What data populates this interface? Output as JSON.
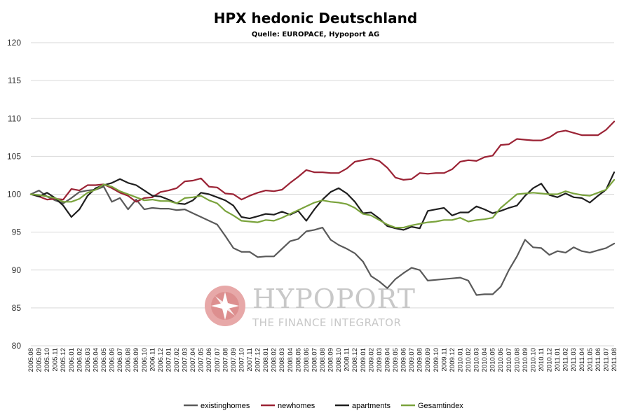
{
  "chart_data": {
    "type": "line",
    "title": "HPX hedonic Deutschland",
    "subtitle": "Quelle: EUROPACE,  Hypoport AG",
    "ylim": [
      80,
      120
    ],
    "yticks": [
      80,
      85,
      90,
      95,
      100,
      105,
      110,
      115,
      120
    ],
    "grid": true,
    "legend_position": "bottom",
    "x": [
      "2005.08",
      "2005.09",
      "2005.10",
      "2005.11",
      "2005.12",
      "2006.01",
      "2006.02",
      "2006.03",
      "2006.04",
      "2006.05",
      "2006.06",
      "2006.07",
      "2006.08",
      "2006.09",
      "2006.10",
      "2006.11",
      "2006.12",
      "2007.01",
      "2007.02",
      "2007.03",
      "2007.04",
      "2007.05",
      "2007.06",
      "2007.07",
      "2007.08",
      "2007.09",
      "2007.10",
      "2007.11",
      "2007.12",
      "2008.01",
      "2008.02",
      "2008.03",
      "2008.04",
      "2008.05",
      "2008.06",
      "2008.07",
      "2008.08",
      "2008.09",
      "2008.10",
      "2008.11",
      "2008.12",
      "2009.01",
      "2009.02",
      "2009.03",
      "2009.04",
      "2009.05",
      "2009.06",
      "2009.07",
      "2009.08",
      "2009.09",
      "2009.10",
      "2009.11",
      "2009.12",
      "2010.01",
      "2010.02",
      "2010.03",
      "2010.04",
      "2010.05",
      "2010.06",
      "2010.07",
      "2010.08",
      "2010.09",
      "2010.10",
      "2010.11",
      "2010.12",
      "2011.01",
      "2011.02",
      "2011.03",
      "2011.04",
      "2011.05",
      "2011.06",
      "2011.07",
      "2011.08"
    ],
    "series": [
      {
        "name": "existinghomes",
        "color": "#5a5a5a",
        "values": [
          100,
          100.5,
          99.7,
          99.2,
          98.8,
          99.5,
          100.3,
          100.5,
          100.6,
          101.0,
          99.0,
          99.5,
          98.0,
          99.3,
          98.0,
          98.2,
          98.1,
          98.1,
          97.9,
          98.0,
          97.5,
          97.0,
          96.5,
          96.0,
          94.5,
          92.9,
          92.4,
          92.4,
          91.7,
          91.8,
          91.8,
          92.8,
          93.8,
          94.1,
          95.1,
          95.3,
          95.6,
          94.0,
          93.3,
          92.8,
          92.2,
          91.1,
          89.2,
          88.5,
          87.6,
          88.8,
          89.6,
          90.3,
          90.0,
          88.6,
          88.7,
          88.8,
          88.9,
          89.0,
          88.6,
          86.7,
          86.8,
          86.8,
          87.8,
          90.0,
          91.8,
          94.0,
          93.0,
          92.9,
          92.0,
          92.5,
          92.3,
          93.0,
          92.5,
          92.3,
          92.6,
          92.9,
          93.5
        ]
      },
      {
        "name": "newhomes",
        "color": "#9b2335",
        "values": [
          100,
          99.7,
          99.3,
          99.4,
          99.3,
          100.7,
          100.5,
          101.2,
          101.2,
          101.3,
          100.8,
          100.2,
          99.8,
          99.0,
          99.5,
          99.6,
          100.3,
          100.5,
          100.8,
          101.7,
          101.8,
          102.1,
          101.0,
          100.9,
          100.1,
          100.0,
          99.3,
          99.8,
          100.2,
          100.5,
          100.4,
          100.6,
          101.5,
          102.3,
          103.2,
          102.9,
          102.9,
          102.8,
          102.8,
          103.4,
          104.3,
          104.5,
          104.7,
          104.4,
          103.5,
          102.2,
          101.9,
          102.0,
          102.8,
          102.7,
          102.8,
          102.8,
          103.3,
          104.3,
          104.5,
          104.4,
          104.9,
          105.1,
          106.5,
          106.6,
          107.3,
          107.2,
          107.1,
          107.1,
          107.5,
          108.2,
          108.4,
          108.1,
          107.8,
          107.8,
          107.8,
          108.5,
          109.6
        ]
      },
      {
        "name": "apartments",
        "color": "#1f1f1f",
        "values": [
          100,
          99.7,
          100.2,
          99.5,
          98.5,
          97.0,
          98.0,
          99.8,
          100.8,
          101.2,
          101.5,
          102.0,
          101.5,
          101.2,
          100.5,
          99.8,
          99.7,
          99.3,
          98.8,
          98.7,
          99.2,
          100.2,
          100.0,
          99.6,
          99.2,
          98.5,
          97.0,
          96.8,
          97.1,
          97.4,
          97.3,
          97.7,
          97.3,
          97.8,
          96.5,
          98.0,
          99.3,
          100.3,
          100.8,
          100.1,
          99.0,
          97.5,
          97.6,
          96.8,
          95.8,
          95.5,
          95.3,
          95.7,
          95.5,
          97.8,
          98.0,
          98.2,
          97.2,
          97.6,
          97.6,
          98.4,
          98.0,
          97.5,
          97.8,
          98.2,
          98.5,
          99.8,
          100.8,
          101.4,
          99.9,
          99.6,
          100.1,
          99.6,
          99.5,
          98.9,
          99.8,
          100.6,
          102.9
        ]
      },
      {
        "name": "Gesamtindex",
        "color": "#7aa33c",
        "values": [
          100,
          99.9,
          99.7,
          99.5,
          99.0,
          99.0,
          99.4,
          100.2,
          100.6,
          101.3,
          101.0,
          100.4,
          100.0,
          99.6,
          99.2,
          99.3,
          99.1,
          99.1,
          98.8,
          99.5,
          99.6,
          99.8,
          99.2,
          98.8,
          97.8,
          97.2,
          96.5,
          96.4,
          96.3,
          96.6,
          96.5,
          96.9,
          97.4,
          97.9,
          98.4,
          98.9,
          99.2,
          99.0,
          98.9,
          98.7,
          98.2,
          97.4,
          97.2,
          96.6,
          96.0,
          95.6,
          95.6,
          95.9,
          96.1,
          96.3,
          96.4,
          96.6,
          96.6,
          96.9,
          96.4,
          96.6,
          96.7,
          96.9,
          98.2,
          99.1,
          100.0,
          100.1,
          100.2,
          100.1,
          100.0,
          100.0,
          100.4,
          100.1,
          99.9,
          99.8,
          100.2,
          100.6,
          101.9
        ]
      }
    ]
  },
  "watermark": {
    "brand": "HYPOPORT",
    "tagline": "THE FINANCE INTEGRATOR"
  }
}
